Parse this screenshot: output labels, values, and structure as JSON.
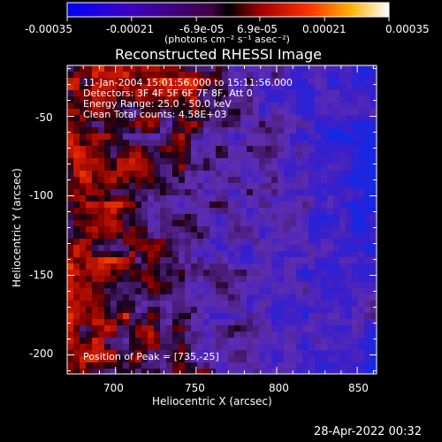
{
  "colorbar": {
    "ticks": [
      "-0.00035",
      "-0.00021",
      "-6.9e-05",
      "6.9e-05",
      "0.00021",
      "0.00035"
    ],
    "unit_label": "(photons cm⁻² s⁻¹ asec⁻²)",
    "range": [
      -0.00035,
      0.00035
    ],
    "colors": {
      "low": "#0000ff",
      "high": "#ffffff"
    }
  },
  "chart_data": {
    "type": "heatmap",
    "title": "Reconstructed RHESSI Image",
    "xlabel": "Heliocentric X (arcsec)",
    "ylabel": "Heliocentric Y (arcsec)",
    "xlim": [
      670,
      862
    ],
    "ylim": [
      -212,
      -18
    ],
    "x_ticks": [
      700,
      750,
      800,
      850
    ],
    "y_ticks": [
      -50,
      -100,
      -150,
      -200
    ],
    "annotations": [
      "11-Jan-2004 15:01:56.000 to 15:11:56.000",
      "Detectors: 3F 4F 5F 6F 7F 8F, Att 0",
      "Energy Range: 25.0 - 50.0 keV",
      "Clean     Total counts: 4.58E+03"
    ],
    "peak_label": "Position of Peak = [735,-25]",
    "peak": [
      735,
      -25
    ]
  },
  "footer": {
    "timestamp": "28-Apr-2022 00:32"
  }
}
